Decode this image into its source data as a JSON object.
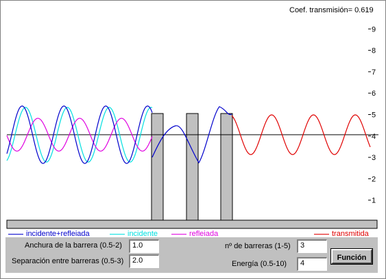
{
  "coef_text": "Coef. transmisión= 0.619",
  "y_ticks": [
    "9",
    "8",
    "7",
    "6",
    "5",
    "4",
    "3",
    "2",
    "1"
  ],
  "legend": [
    {
      "label": "incidente+refleiada",
      "color": "#0000cc"
    },
    {
      "label": "incidente",
      "color": "#00e0e0"
    },
    {
      "label": "refleiada",
      "color": "#e000e0"
    },
    {
      "label": "transmitida",
      "color": "#e00000"
    }
  ],
  "controls": {
    "anchura_label": "Anchura de la barrera (0.5-2)",
    "anchura_value": "1.0",
    "separacion_label": "Separación entre barreras (0.5-3)",
    "separacion_value": "2.0",
    "n_barreras_label": "nº de barreras (1-5)",
    "n_barreras_value": "3",
    "energia_label": "Energía (0.5-10)",
    "energia_value": "4",
    "button_label": "Función"
  },
  "colors": {
    "barrier_fill": "#c0c0c0",
    "panel_bg": "#c0c0c0"
  }
}
